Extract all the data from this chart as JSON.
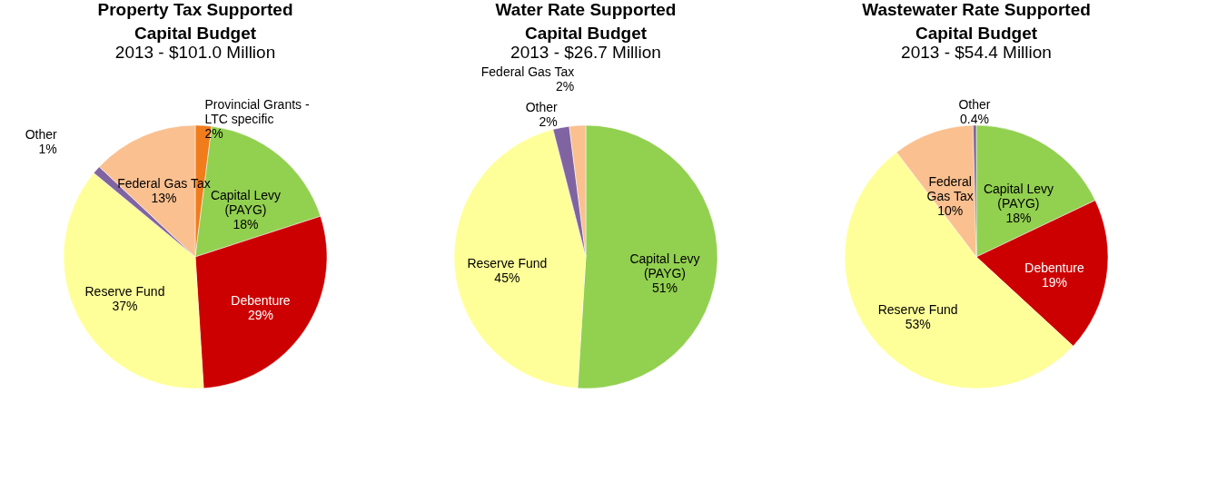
{
  "chart_data": [
    {
      "type": "pie",
      "title": [
        "Property Tax Supported",
        "Capital Budget"
      ],
      "subtitle": "2013 - $101.0 Million",
      "categories": [
        "Provincial Grants -\nLTC specific",
        "Capital Levy\n(PAYG)",
        "Debenture",
        "Reserve Fund",
        "Other",
        "Federal Gas Tax"
      ],
      "values": [
        2,
        18,
        29,
        37,
        1,
        13
      ],
      "value_labels": [
        "2%",
        "18%",
        "29%",
        "37%",
        "1%",
        "13%"
      ],
      "colors": [
        "#f07c1c",
        "#92d050",
        "#cc0000",
        "#ffff99",
        "#8064a2",
        "#fac090"
      ],
      "legend": false
    },
    {
      "type": "pie",
      "title": [
        "Water Rate Supported",
        "Capital Budget"
      ],
      "subtitle": "2013 - $26.7 Million",
      "categories": [
        "Capital Levy\n(PAYG)",
        "Reserve Fund",
        "Other",
        "Federal Gas Tax"
      ],
      "values": [
        51,
        45,
        2,
        2
      ],
      "value_labels": [
        "51%",
        "45%",
        "2%",
        "2%"
      ],
      "colors": [
        "#92d050",
        "#ffff99",
        "#8064a2",
        "#fac090"
      ],
      "legend": false
    },
    {
      "type": "pie",
      "title": [
        "Wastewater Rate Supported",
        "Capital Budget"
      ],
      "subtitle": "2013 - $54.4 Million",
      "categories": [
        "Capital Levy\n(PAYG)",
        "Debenture",
        "Reserve Fund",
        "Federal\nGas Tax",
        "Other"
      ],
      "values": [
        18,
        19,
        53,
        10,
        0.4
      ],
      "value_labels": [
        "18%",
        "19%",
        "53%",
        "10%",
        "0.4%"
      ],
      "colors": [
        "#92d050",
        "#cc0000",
        "#ffff99",
        "#fac090",
        "#8064a2"
      ],
      "legend": false
    }
  ]
}
